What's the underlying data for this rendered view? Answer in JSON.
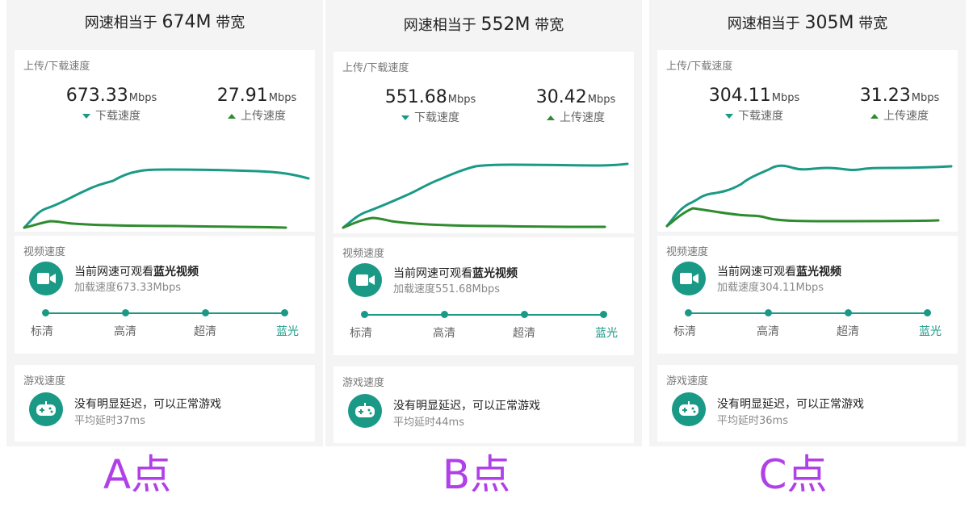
{
  "panels": [
    {
      "title_prefix": "网速相当于",
      "title_value": "674M",
      "title_suffix": "带宽",
      "speed_label": "上传/下载速度",
      "download_value": "673.33",
      "download_unit": "Mbps",
      "download_label": "下载速度",
      "upload_value": "27.91",
      "upload_unit": "Mbps",
      "upload_label": "上传速度",
      "video_label": "视频速度",
      "video_text": "当前网速可观看",
      "video_quality": "蓝光视频",
      "video_load": "加载速度673.33Mbps",
      "qualities": [
        "标清",
        "高清",
        "超清",
        "蓝光"
      ],
      "game_label": "游戏速度",
      "game_text": "没有明显延迟，可以正常游戏",
      "game_latency": "平均延时37ms",
      "point": "A点"
    },
    {
      "title_prefix": "网速相当于",
      "title_value": "552M",
      "title_suffix": "带宽",
      "speed_label": "上传/下载速度",
      "download_value": "551.68",
      "download_unit": "Mbps",
      "download_label": "下载速度",
      "upload_value": "30.42",
      "upload_unit": "Mbps",
      "upload_label": "上传速度",
      "video_label": "视频速度",
      "video_text": "当前网速可观看",
      "video_quality": "蓝光视频",
      "video_load": "加载速度551.68Mbps",
      "qualities": [
        "标清",
        "高清",
        "超清",
        "蓝光"
      ],
      "game_label": "游戏速度",
      "game_text": "没有明显延迟，可以正常游戏",
      "game_latency": "平均延时44ms",
      "point": "B点"
    },
    {
      "title_prefix": "网速相当于",
      "title_value": "305M",
      "title_suffix": "带宽",
      "speed_label": "上传/下载速度",
      "download_value": "304.11",
      "download_unit": "Mbps",
      "download_label": "下载速度",
      "upload_value": "31.23",
      "upload_unit": "Mbps",
      "upload_label": "上传速度",
      "video_label": "视频速度",
      "video_text": "当前网速可观看",
      "video_quality": "蓝光视频",
      "video_load": "加载速度304.11Mbps",
      "qualities": [
        "标清",
        "高清",
        "超清",
        "蓝光"
      ],
      "game_label": "游戏速度",
      "game_text": "没有明显延迟，可以正常游戏",
      "game_latency": "平均延时36ms",
      "point": "C点"
    }
  ],
  "colors": {
    "accent": "#1a9a86",
    "download_line": "#1a9a86",
    "upload_line": "#2e8b2e",
    "point_label": "#b040e8"
  },
  "icons": [
    "video-camera-icon",
    "gamepad-icon",
    "triangle-down-icon",
    "triangle-up-icon"
  ]
}
